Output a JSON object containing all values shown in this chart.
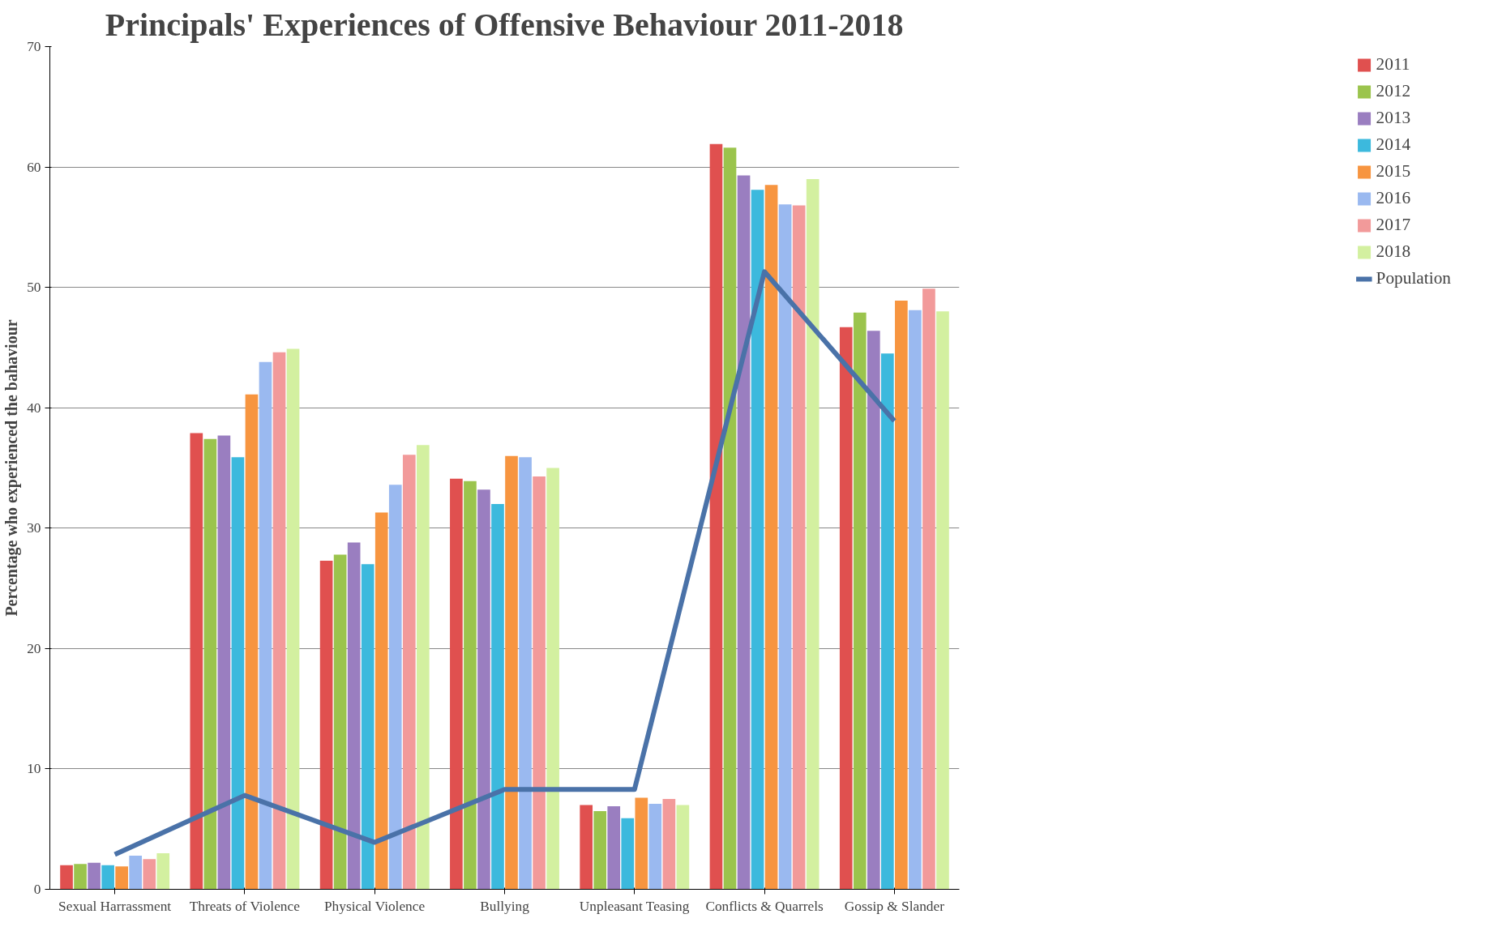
{
  "chart_data": {
    "type": "bar",
    "title": "Principals' Experiences of Offensive Behaviour 2011-2018",
    "ylabel": "Percentage who experienced the bahaviour",
    "categories": [
      "Sexual Harrassment",
      "Threats of Violence",
      "Physical Violence",
      "Bullying",
      "Unpleasant Teasing",
      "Conflicts & Quarrels",
      "Gossip & Slander"
    ],
    "ylim": [
      0,
      70
    ],
    "yticks": [
      0,
      10,
      20,
      30,
      40,
      50,
      60,
      70
    ],
    "grid": "y",
    "legend": "right",
    "series": [
      {
        "name": "2011",
        "color": "#e0504f",
        "values": [
          2.0,
          37.9,
          27.3,
          34.1,
          7.0,
          61.9,
          46.7
        ]
      },
      {
        "name": "2012",
        "color": "#9bc44d",
        "values": [
          2.1,
          37.4,
          27.8,
          33.9,
          6.5,
          61.6,
          47.9
        ]
      },
      {
        "name": "2013",
        "color": "#9a7ec0",
        "values": [
          2.2,
          37.7,
          28.8,
          33.2,
          6.9,
          59.3,
          46.4
        ]
      },
      {
        "name": "2014",
        "color": "#3cb9dd",
        "values": [
          2.0,
          35.9,
          27.0,
          32.0,
          5.9,
          58.1,
          44.5
        ]
      },
      {
        "name": "2015",
        "color": "#f79540",
        "values": [
          1.9,
          41.1,
          31.3,
          36.0,
          7.6,
          58.5,
          48.9
        ]
      },
      {
        "name": "2016",
        "color": "#9ab9f0",
        "values": [
          2.8,
          43.8,
          33.6,
          35.9,
          7.1,
          56.9,
          48.1
        ]
      },
      {
        "name": "2017",
        "color": "#f29a9a",
        "values": [
          2.5,
          44.6,
          36.1,
          34.3,
          7.5,
          56.8,
          49.9
        ]
      },
      {
        "name": "2018",
        "color": "#d3f0a0",
        "values": [
          3.0,
          44.9,
          36.9,
          35.0,
          7.0,
          59.0,
          48.0
        ]
      },
      {
        "name": "Population",
        "type": "line",
        "color": "#4a72a8",
        "values": [
          2.9,
          7.8,
          3.9,
          8.3,
          8.3,
          51.3,
          38.9
        ]
      }
    ]
  }
}
